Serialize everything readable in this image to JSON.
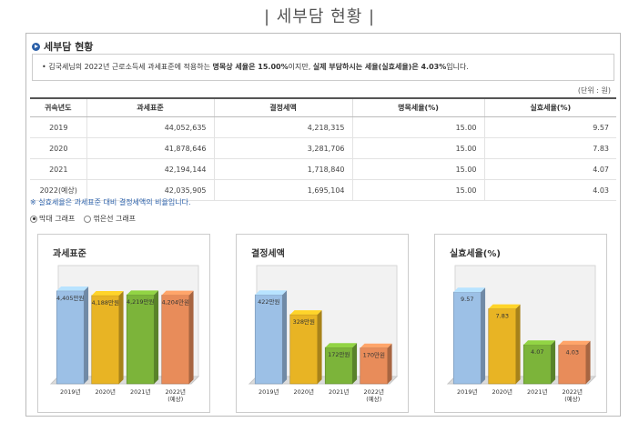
{
  "page_title": "| 세부담 현황 |",
  "section_title": "세부담 현황",
  "info": {
    "prefix": "• 김국세님의 2022년 근로소득세 과세표준에 적용하는 ",
    "bold1": "명목상 세율은 15.00%",
    "mid": "이지만, ",
    "bold2": "실제 부담하시는 세율(실효세율)은 4.03%",
    "suffix": "입니다."
  },
  "unit_label": "(단위 : 원)",
  "table": {
    "headers": [
      "귀속년도",
      "과세표준",
      "결정세액",
      "명목세율(%)",
      "실효세율(%)"
    ],
    "rows": [
      [
        "2019",
        "44,052,635",
        "4,218,315",
        "15.00",
        "9.57"
      ],
      [
        "2020",
        "41,878,646",
        "3,281,706",
        "15.00",
        "7.83"
      ],
      [
        "2021",
        "42,194,144",
        "1,718,840",
        "15.00",
        "4.07"
      ],
      [
        "2022(예상)",
        "42,035,905",
        "1,695,104",
        "15.00",
        "4.03"
      ]
    ]
  },
  "note": "※ 실효세율은 과세표준 대비 결정세액의 비율입니다.",
  "graph_options": [
    {
      "label": "막대 그래프",
      "selected": true
    },
    {
      "label": "꺾은선 그래프",
      "selected": false
    }
  ],
  "colors": [
    "#9cc0e6",
    "#e8b424",
    "#7cb43a",
    "#e88c5a"
  ],
  "chart_data": [
    {
      "type": "bar",
      "title": "과세표준",
      "categories": [
        "2019년",
        "2020년",
        "2021년",
        "2022년\n(예상)"
      ],
      "values": [
        4405,
        4188,
        4219,
        4204
      ],
      "data_labels": [
        "4,405만원",
        "4,188만원",
        "4,219만원",
        "4,204만원"
      ],
      "ylim": [
        0,
        5000
      ]
    },
    {
      "type": "bar",
      "title": "결정세액",
      "categories": [
        "2019년",
        "2020년",
        "2021년",
        "2022년\n(예상)"
      ],
      "values": [
        422,
        328,
        172,
        170
      ],
      "data_labels": [
        "422만원",
        "328만원",
        "172만원",
        "170만원"
      ],
      "ylim": [
        0,
        500
      ]
    },
    {
      "type": "bar",
      "title": "실효세율(%)",
      "categories": [
        "2019년",
        "2020년",
        "2021년",
        "2022년\n(예상)"
      ],
      "values": [
        9.57,
        7.83,
        4.07,
        4.03
      ],
      "data_labels": [
        "9.57",
        "7.83",
        "4.07",
        "4.03"
      ],
      "ylim": [
        0,
        11
      ]
    }
  ]
}
